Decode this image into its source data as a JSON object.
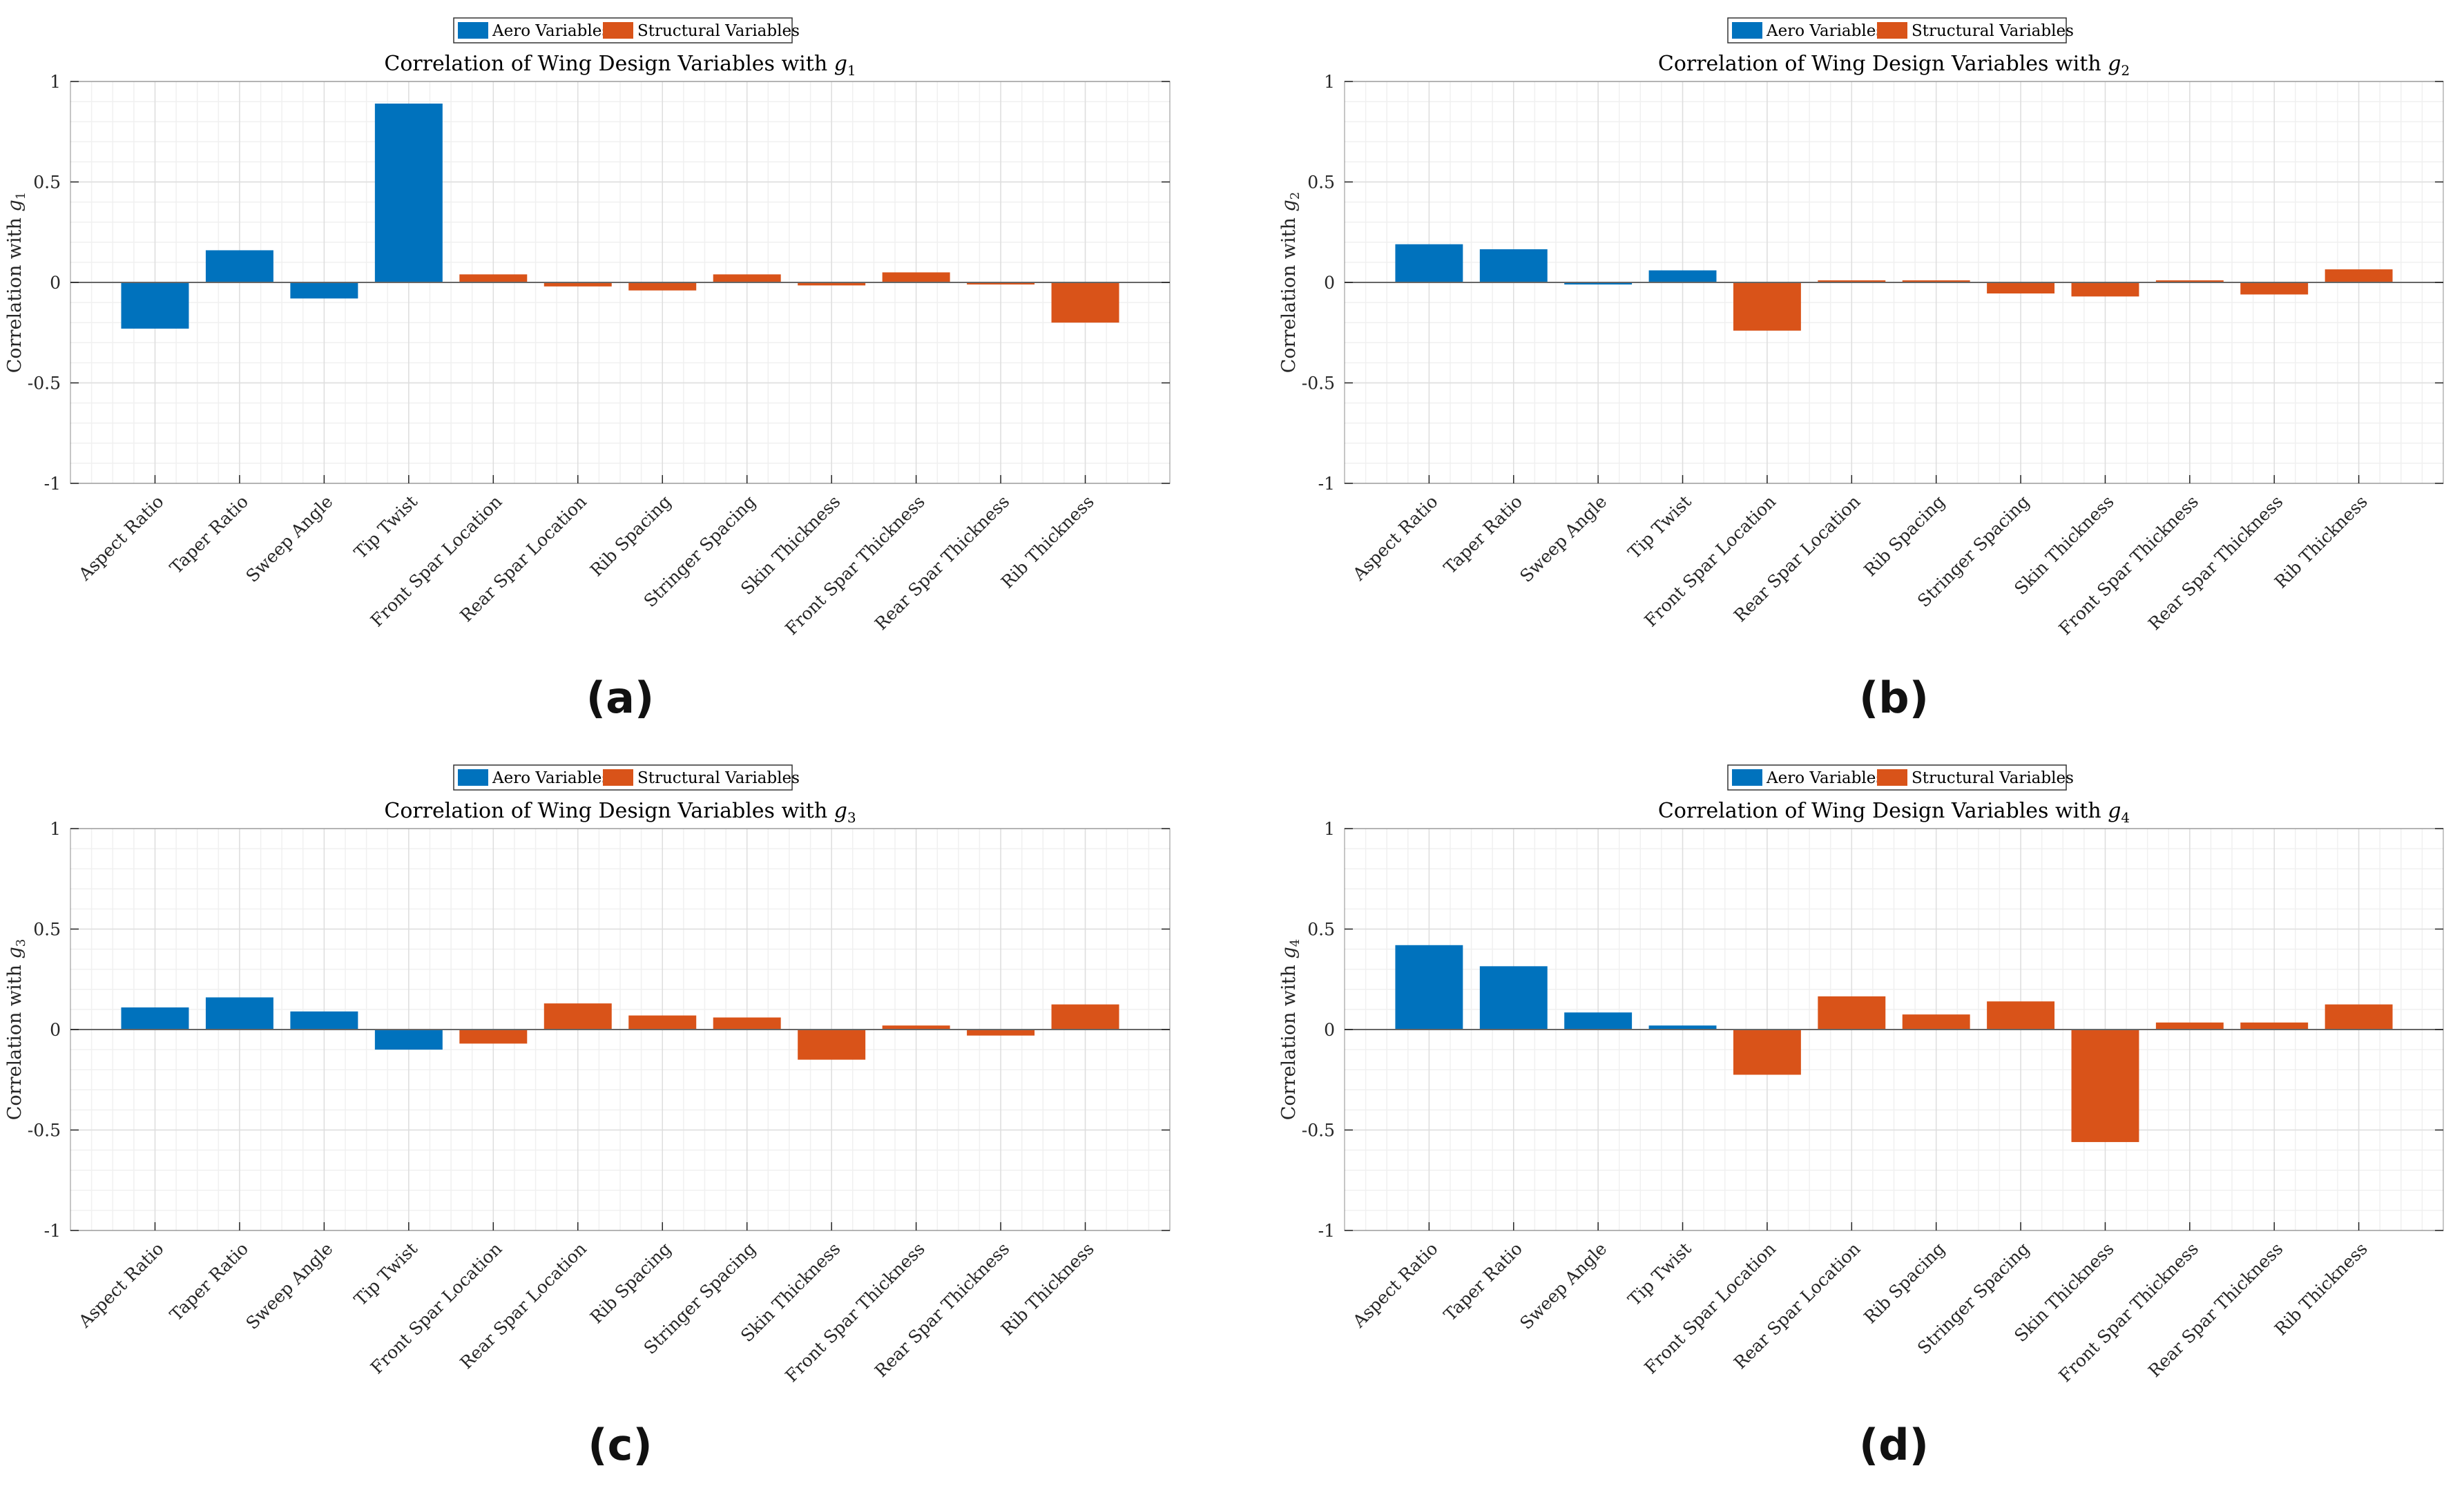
{
  "colors": {
    "aero": "#0072BD",
    "structural": "#D95319",
    "axis": "#262626",
    "grid_major": "#dedede",
    "grid_minor": "#f0f0f0"
  },
  "legend": {
    "aero_label": "Aero Variables",
    "structural_label": "Structural Variables"
  },
  "chart_data": [
    {
      "panel": "(a)",
      "type": "bar",
      "title_prefix": "Correlation of Wing Design Variables with ",
      "title_var": "g",
      "title_sub": "1",
      "ylabel_prefix": "Correlation with ",
      "ylabel_var": "g",
      "ylabel_sub": "1",
      "ylim": [
        -1,
        1
      ],
      "yticks": [
        "-1",
        "-0.5",
        "0",
        "0.5",
        "1"
      ],
      "grid": true,
      "legend_position": "top",
      "categories": [
        "Aspect Ratio",
        "Taper Ratio",
        "Sweep Angle",
        "Tip Twist",
        "Front Spar Location",
        "Rear Spar Location",
        "Rib Spacing",
        "Stringer Spacing",
        "Skin Thickness",
        "Front Spar Thickness",
        "Rear Spar Thickness",
        "Rib Thickness"
      ],
      "groups": [
        "aero",
        "aero",
        "aero",
        "aero",
        "structural",
        "structural",
        "structural",
        "structural",
        "structural",
        "structural",
        "structural",
        "structural"
      ],
      "values": [
        -0.23,
        0.16,
        -0.08,
        0.89,
        0.04,
        -0.02,
        -0.04,
        0.04,
        -0.015,
        0.05,
        -0.01,
        -0.2
      ]
    },
    {
      "panel": "(b)",
      "type": "bar",
      "title_prefix": "Correlation of Wing Design Variables with ",
      "title_var": "g",
      "title_sub": "2",
      "ylabel_prefix": "Correlation with ",
      "ylabel_var": "g",
      "ylabel_sub": "2",
      "ylim": [
        -1,
        1
      ],
      "yticks": [
        "-1",
        "-0.5",
        "0",
        "0.5",
        "1"
      ],
      "grid": true,
      "legend_position": "top",
      "categories": [
        "Aspect Ratio",
        "Taper Ratio",
        "Sweep Angle",
        "Tip Twist",
        "Front Spar Location",
        "Rear Spar Location",
        "Rib Spacing",
        "Stringer Spacing",
        "Skin Thickness",
        "Front Spar Thickness",
        "Rear Spar Thickness",
        "Rib Thickness"
      ],
      "groups": [
        "aero",
        "aero",
        "aero",
        "aero",
        "structural",
        "structural",
        "structural",
        "structural",
        "structural",
        "structural",
        "structural",
        "structural"
      ],
      "values": [
        0.19,
        0.165,
        -0.005,
        0.06,
        -0.24,
        0.0,
        0.0,
        -0.055,
        -0.07,
        0.0,
        -0.06,
        0.065
      ]
    },
    {
      "panel": "(c)",
      "type": "bar",
      "title_prefix": "Correlation of Wing Design Variables with ",
      "title_var": "g",
      "title_sub": "3",
      "ylabel_prefix": "Correlation with ",
      "ylabel_var": "g",
      "ylabel_sub": "3",
      "ylim": [
        -1,
        1
      ],
      "yticks": [
        "-1",
        "-0.5",
        "0",
        "0.5",
        "1"
      ],
      "grid": true,
      "legend_position": "top",
      "categories": [
        "Aspect Ratio",
        "Taper Ratio",
        "Sweep Angle",
        "Tip Twist",
        "Front Spar Location",
        "Rear Spar Location",
        "Rib Spacing",
        "Stringer Spacing",
        "Skin Thickness",
        "Front Spar Thickness",
        "Rear Spar Thickness",
        "Rib Thickness"
      ],
      "groups": [
        "aero",
        "aero",
        "aero",
        "aero",
        "structural",
        "structural",
        "structural",
        "structural",
        "structural",
        "structural",
        "structural",
        "structural"
      ],
      "values": [
        0.11,
        0.16,
        0.09,
        -0.1,
        -0.07,
        0.13,
        0.07,
        0.06,
        -0.15,
        0.02,
        -0.03,
        0.125
      ]
    },
    {
      "panel": "(d)",
      "type": "bar",
      "title_prefix": "Correlation of Wing Design Variables with ",
      "title_var": "g",
      "title_sub": "4",
      "ylabel_prefix": "Correlation with ",
      "ylabel_var": "g",
      "ylabel_sub": "4",
      "ylim": [
        -1,
        1
      ],
      "yticks": [
        "-1",
        "-0.5",
        "0",
        "0.5",
        "1"
      ],
      "grid": true,
      "legend_position": "top",
      "categories": [
        "Aspect Ratio",
        "Taper Ratio",
        "Sweep Angle",
        "Tip Twist",
        "Front Spar Location",
        "Rear Spar Location",
        "Rib Spacing",
        "Stringer Spacing",
        "Skin Thickness",
        "Front Spar Thickness",
        "Rear Spar Thickness",
        "Rib Thickness"
      ],
      "groups": [
        "aero",
        "aero",
        "aero",
        "aero",
        "structural",
        "structural",
        "structural",
        "structural",
        "structural",
        "structural",
        "structural",
        "structural"
      ],
      "values": [
        0.42,
        0.315,
        0.085,
        0.02,
        -0.225,
        0.165,
        0.075,
        0.14,
        -0.56,
        0.035,
        0.035,
        0.125
      ]
    }
  ]
}
